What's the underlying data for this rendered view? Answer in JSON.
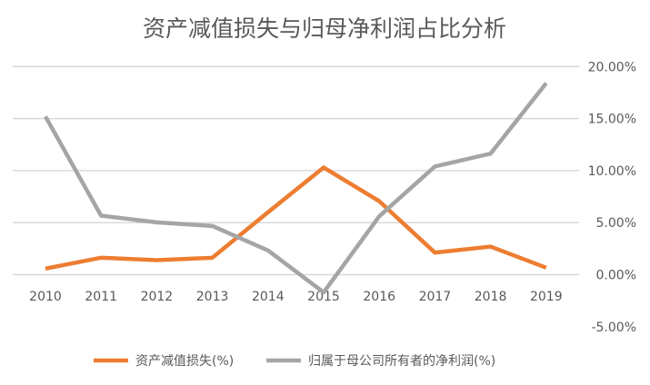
{
  "chart_data": {
    "type": "line",
    "title": "资产减值损失与归母净利润占比分析",
    "categories": [
      "2010",
      "2011",
      "2012",
      "2013",
      "2014",
      "2015",
      "2016",
      "2017",
      "2018",
      "2019"
    ],
    "series": [
      {
        "name": "资产减值损失(%)",
        "color": "#ED7D31",
        "values": [
          0.58,
          1.63,
          1.4,
          1.63,
          6.0,
          10.3,
          7.06,
          2.12,
          2.7,
          0.67
        ]
      },
      {
        "name": "归属于母公司所有者的净利润(%)",
        "color": "#A5A5A5",
        "values": [
          15.2,
          5.67,
          5.03,
          4.68,
          2.33,
          -1.7,
          5.61,
          10.4,
          11.63,
          18.4
        ]
      }
    ],
    "y_ticks": [
      "20.00%",
      "15.00%",
      "10.00%",
      "5.00%",
      "0.00%",
      "-5.00%"
    ],
    "y_tick_values": [
      20,
      15,
      10,
      5,
      0,
      -5
    ],
    "ylim": [
      -5,
      20
    ],
    "y_axis_side": "right",
    "grid": true,
    "legend_position": "bottom"
  }
}
